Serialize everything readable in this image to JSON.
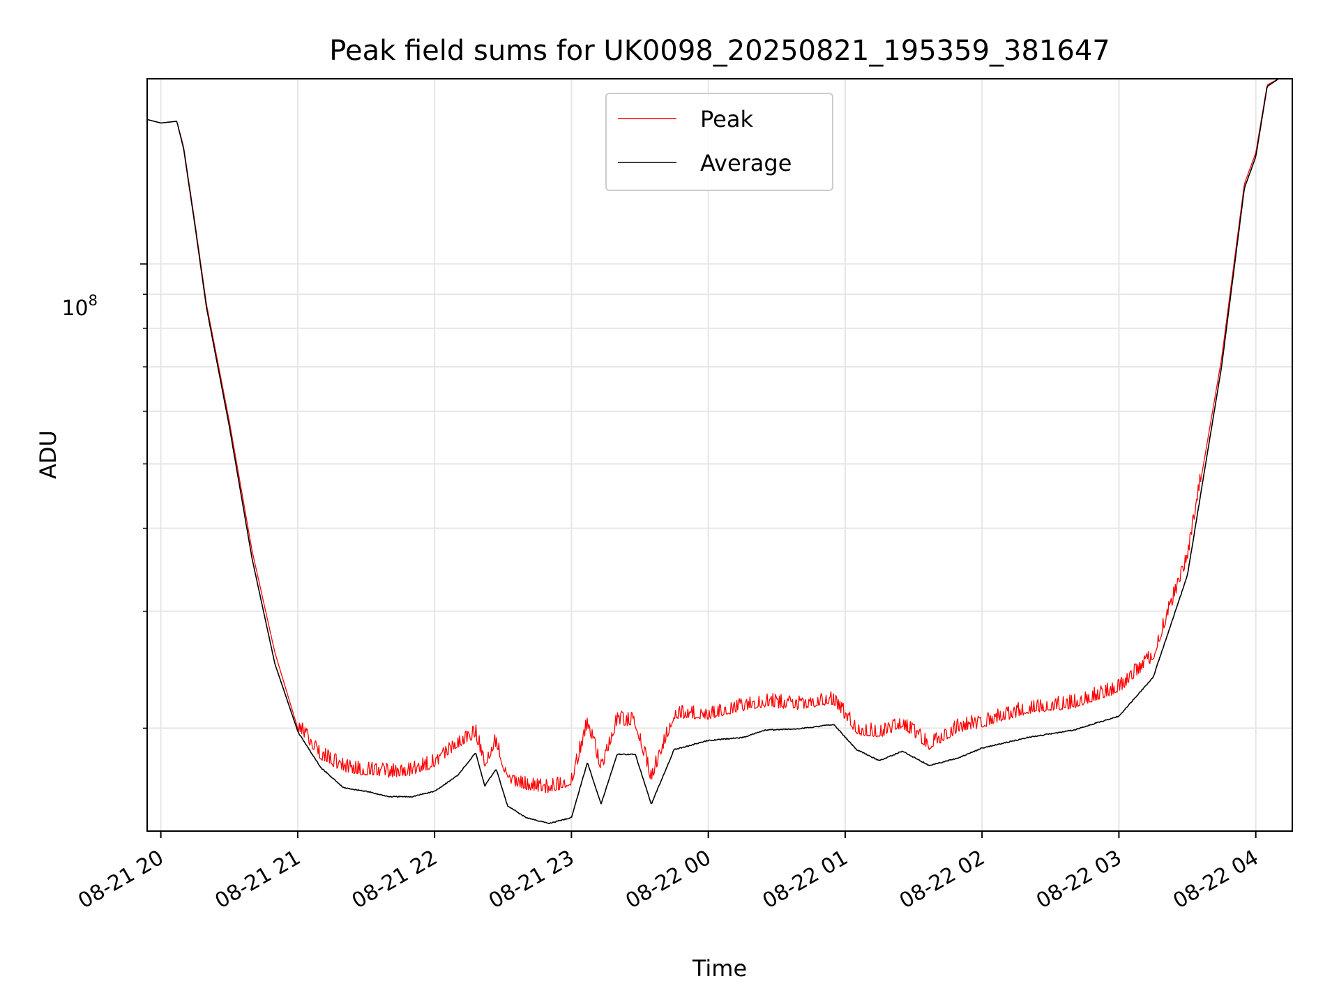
{
  "chart_data": {
    "type": "line",
    "title": "Peak field sums for UK0098_20250821_195359_381647",
    "xlabel": "Time",
    "ylabel": "ADU",
    "yscale": "log",
    "xlim": [
      "2025-08-21 19:54",
      "2025-08-22 04:16"
    ],
    "ylim": [
      14000000,
      190000000
    ],
    "grid": true,
    "legend_position": "top-center",
    "x_ticks": [
      "08-21 20",
      "08-21 21",
      "08-21 22",
      "08-21 23",
      "08-22 00",
      "08-22 01",
      "08-22 02",
      "08-22 03",
      "08-22 04"
    ],
    "y_tick_major_label": "10^8",
    "y_tick_major_base": "10",
    "y_tick_major_exp": "8",
    "y_tick_major_value": 100000000,
    "series": [
      {
        "name": "Peak",
        "color": "#ff0000",
        "x": [
          "2025-08-21 19:54",
          "2025-08-21 20:00",
          "2025-08-21 20:07",
          "2025-08-21 20:10",
          "2025-08-21 20:15",
          "2025-08-21 20:20",
          "2025-08-21 20:30",
          "2025-08-21 20:40",
          "2025-08-21 20:50",
          "2025-08-21 21:00",
          "2025-08-21 21:10",
          "2025-08-21 21:20",
          "2025-08-21 21:30",
          "2025-08-21 21:40",
          "2025-08-21 21:50",
          "2025-08-21 22:00",
          "2025-08-21 22:10",
          "2025-08-21 22:18",
          "2025-08-21 22:22",
          "2025-08-21 22:27",
          "2025-08-21 22:32",
          "2025-08-21 22:40",
          "2025-08-21 22:50",
          "2025-08-21 23:00",
          "2025-08-21 23:07",
          "2025-08-21 23:13",
          "2025-08-21 23:20",
          "2025-08-21 23:28",
          "2025-08-21 23:35",
          "2025-08-21 23:45",
          "2025-08-22 00:00",
          "2025-08-22 00:15",
          "2025-08-22 00:25",
          "2025-08-22 00:40",
          "2025-08-22 00:55",
          "2025-08-22 01:05",
          "2025-08-22 01:15",
          "2025-08-22 01:25",
          "2025-08-22 01:37",
          "2025-08-22 01:50",
          "2025-08-22 02:00",
          "2025-08-22 02:20",
          "2025-08-22 02:40",
          "2025-08-22 03:00",
          "2025-08-22 03:15",
          "2025-08-22 03:30",
          "2025-08-22 03:45",
          "2025-08-22 03:55",
          "2025-08-22 04:00",
          "2025-08-22 04:05",
          "2025-08-22 04:10",
          "2025-08-22 04:16"
        ],
        "values": [
          165000000,
          163000000,
          164000000,
          150000000,
          115000000,
          87000000,
          58000000,
          37000000,
          26000000,
          20000000,
          18100000,
          17300000,
          17100000,
          17000000,
          17100000,
          17600000,
          18800000,
          19500000,
          17600000,
          19000000,
          16600000,
          16300000,
          16100000,
          16500000,
          20200000,
          17300000,
          20400000,
          20300000,
          16700000,
          20800000,
          20800000,
          21400000,
          21700000,
          21500000,
          21900000,
          19700000,
          19500000,
          20200000,
          18700000,
          19900000,
          20200000,
          21200000,
          21600000,
          22800000,
          25500000,
          36000000,
          72000000,
          132000000,
          147000000,
          186000000,
          190000000,
          190000000
        ]
      },
      {
        "name": "Average",
        "color": "#000000",
        "x": [
          "2025-08-21 19:54",
          "2025-08-21 20:00",
          "2025-08-21 20:07",
          "2025-08-21 20:10",
          "2025-08-21 20:15",
          "2025-08-21 20:20",
          "2025-08-21 20:30",
          "2025-08-21 20:40",
          "2025-08-21 20:50",
          "2025-08-21 21:00",
          "2025-08-21 21:10",
          "2025-08-21 21:20",
          "2025-08-21 21:30",
          "2025-08-21 21:40",
          "2025-08-21 21:50",
          "2025-08-21 22:00",
          "2025-08-21 22:10",
          "2025-08-21 22:18",
          "2025-08-21 22:22",
          "2025-08-21 22:27",
          "2025-08-21 22:32",
          "2025-08-21 22:40",
          "2025-08-21 22:50",
          "2025-08-21 23:00",
          "2025-08-21 23:07",
          "2025-08-21 23:13",
          "2025-08-21 23:20",
          "2025-08-21 23:28",
          "2025-08-21 23:35",
          "2025-08-21 23:45",
          "2025-08-22 00:00",
          "2025-08-22 00:15",
          "2025-08-22 00:25",
          "2025-08-22 00:40",
          "2025-08-22 00:55",
          "2025-08-22 01:05",
          "2025-08-22 01:15",
          "2025-08-22 01:25",
          "2025-08-22 01:37",
          "2025-08-22 01:50",
          "2025-08-22 02:00",
          "2025-08-22 02:20",
          "2025-08-22 02:40",
          "2025-08-22 03:00",
          "2025-08-22 03:15",
          "2025-08-22 03:30",
          "2025-08-22 03:45",
          "2025-08-22 03:55",
          "2025-08-22 04:00",
          "2025-08-22 04:05",
          "2025-08-22 04:10",
          "2025-08-22 04:16"
        ],
        "values": [
          165000000,
          163000000,
          164000000,
          149000000,
          114000000,
          86000000,
          57000000,
          36000000,
          25000000,
          19800000,
          17500000,
          16300000,
          16100000,
          15800000,
          15800000,
          16100000,
          17000000,
          18400000,
          16400000,
          17400000,
          15300000,
          14700000,
          14400000,
          14700000,
          17800000,
          15400000,
          18300000,
          18300000,
          15400000,
          18600000,
          19200000,
          19400000,
          19900000,
          20000000,
          20300000,
          18600000,
          17900000,
          18500000,
          17600000,
          18100000,
          18700000,
          19400000,
          19900000,
          20900000,
          23900000,
          34000000,
          70000000,
          130000000,
          145000000,
          185000000,
          190000000,
          190000000
        ]
      }
    ]
  }
}
